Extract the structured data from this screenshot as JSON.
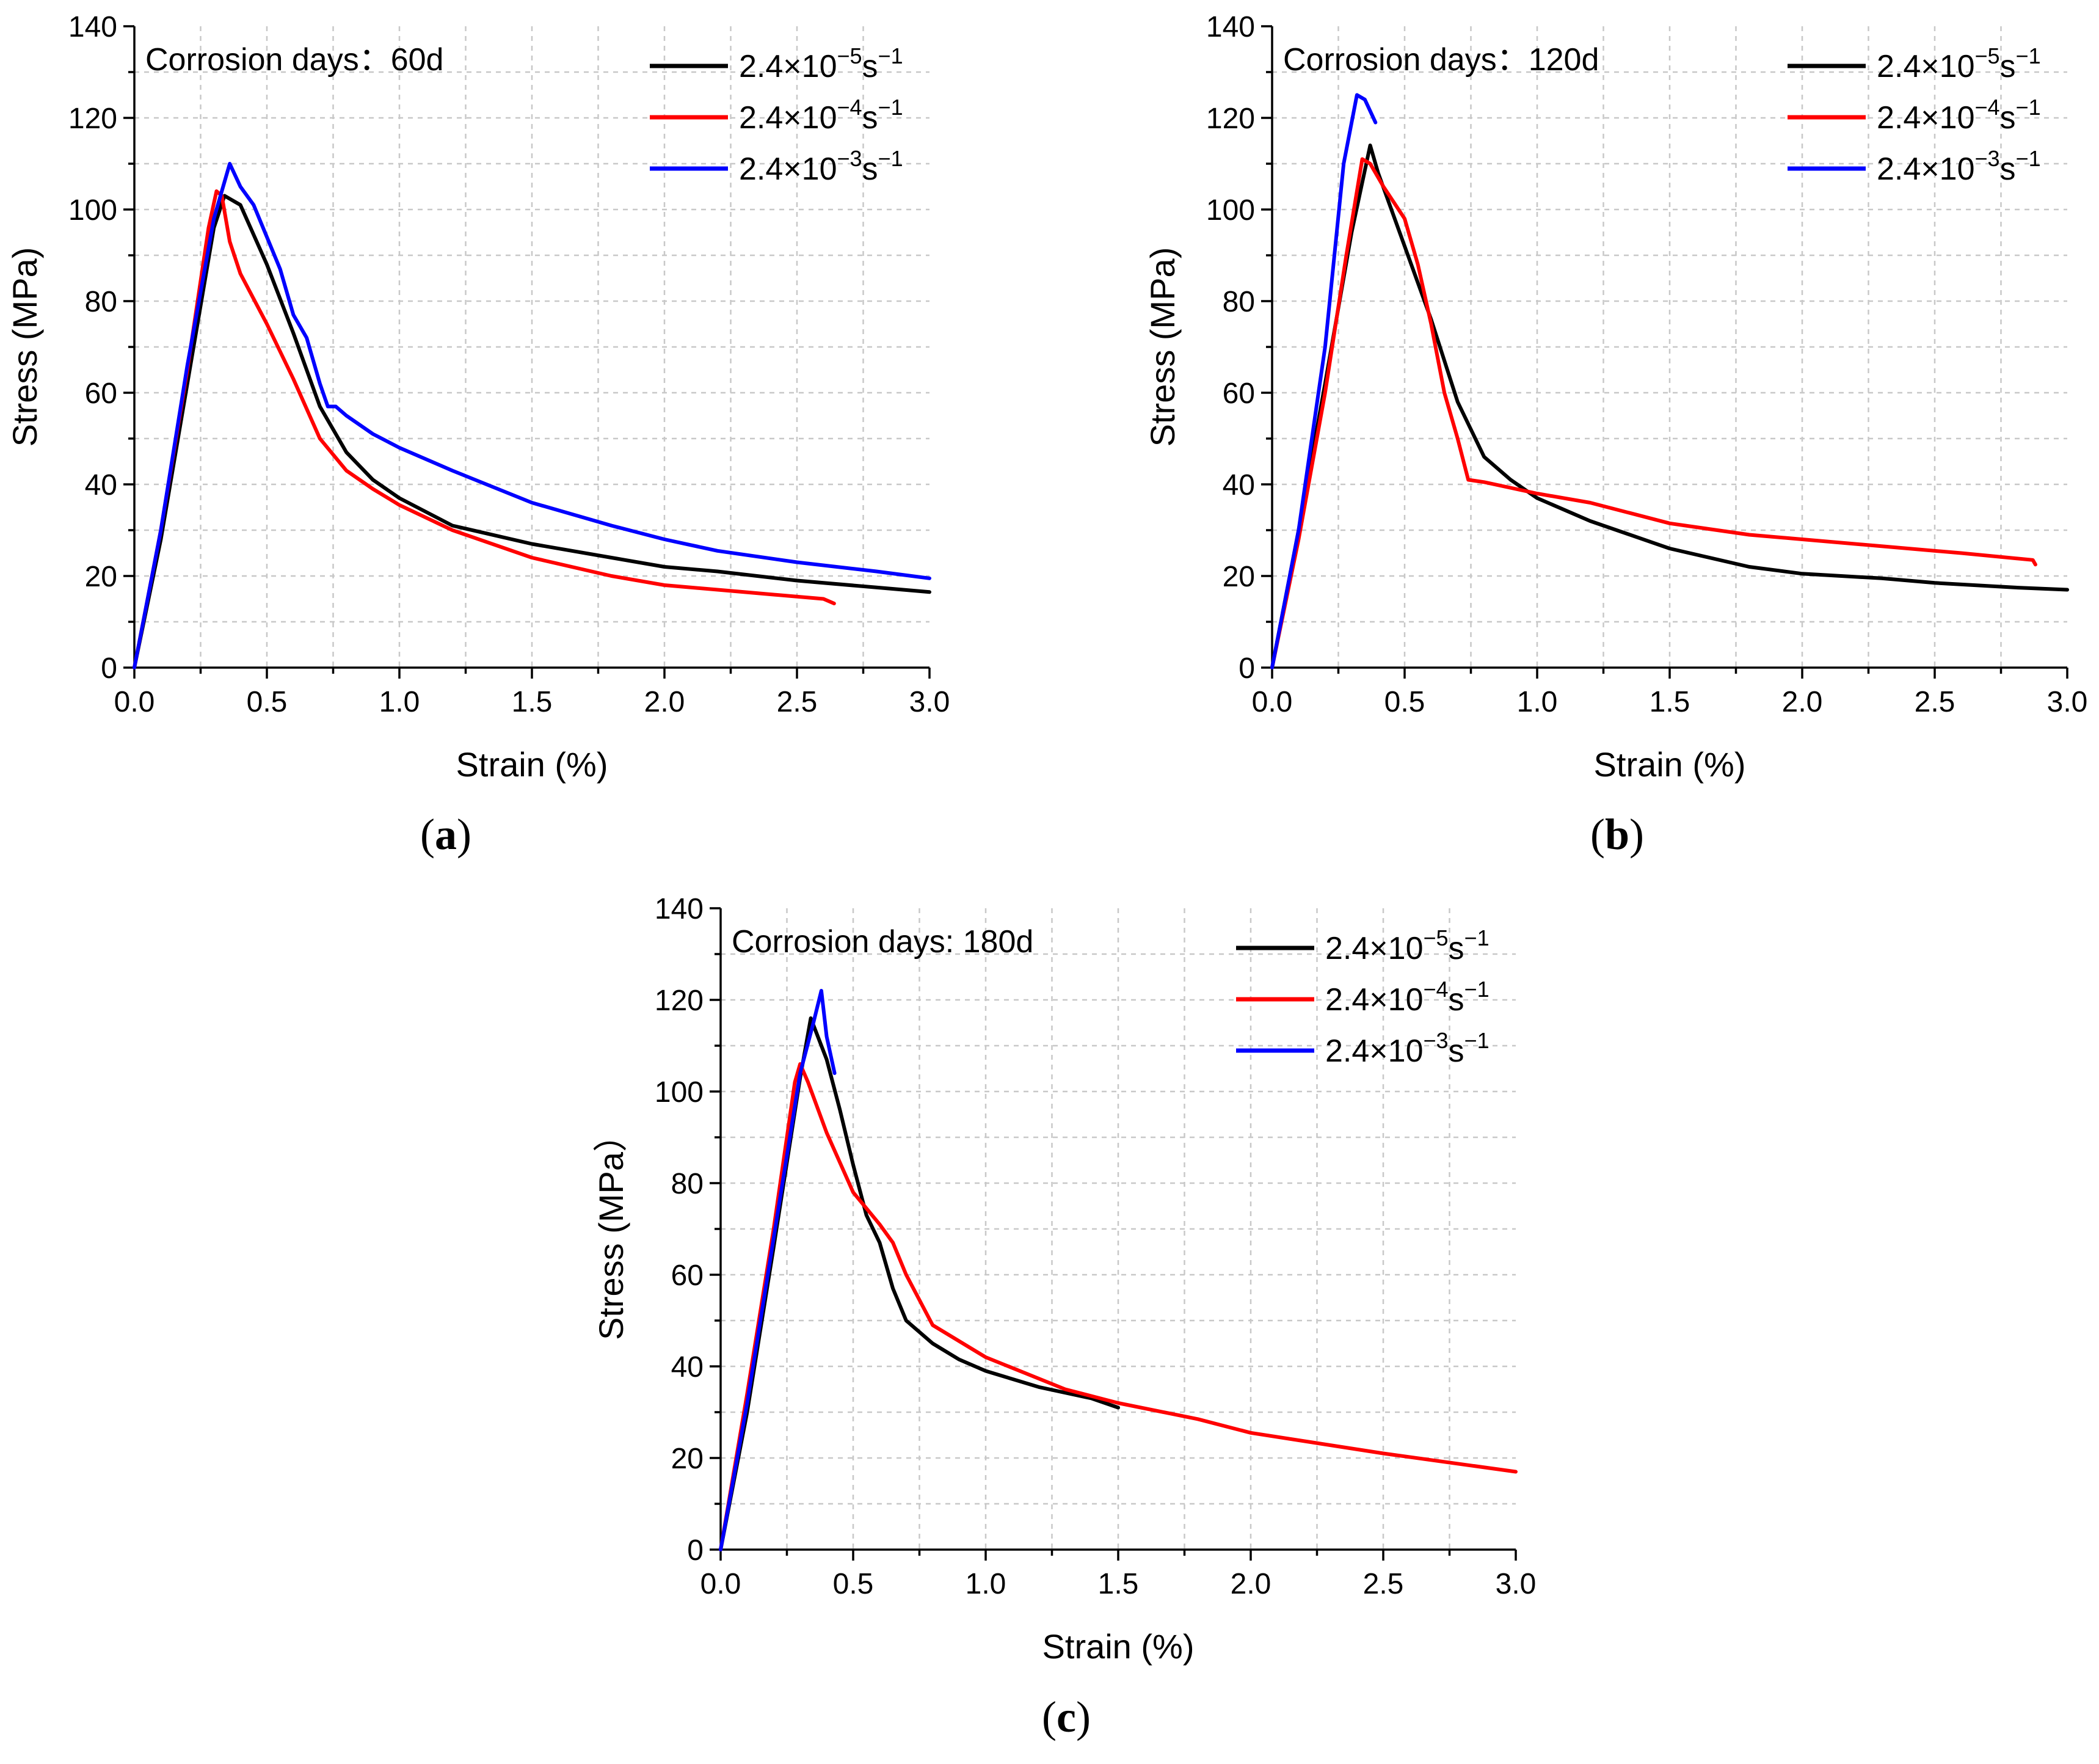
{
  "chart_data": [
    {
      "type": "line",
      "panel_label": "a",
      "annotation": "Corrosion days：60d",
      "xlabel": "Strain (%)",
      "ylabel": "Stress (MPa)",
      "xlim": [
        0,
        3.0
      ],
      "ylim": [
        0,
        140
      ],
      "xticks": [
        "0.0",
        "0.5",
        "1.0",
        "1.5",
        "2.0",
        "2.5",
        "3.0"
      ],
      "yticks": [
        "0",
        "20",
        "40",
        "60",
        "80",
        "100",
        "120",
        "140"
      ],
      "grid": true,
      "legend_position": "top-right",
      "series": [
        {
          "name": "2.4×10⁻⁵s⁻¹",
          "base": "2.4×10",
          "exp": "−5",
          "unit": "s",
          "unit_exp": "−1",
          "color": "#000000",
          "points": [
            [
              0,
              0
            ],
            [
              0.1,
              28
            ],
            [
              0.2,
              62
            ],
            [
              0.3,
              96
            ],
            [
              0.34,
              103
            ],
            [
              0.4,
              101
            ],
            [
              0.5,
              88
            ],
            [
              0.6,
              73
            ],
            [
              0.7,
              57
            ],
            [
              0.8,
              47
            ],
            [
              0.9,
              41
            ],
            [
              1.0,
              37
            ],
            [
              1.2,
              31
            ],
            [
              1.5,
              27
            ],
            [
              1.8,
              24
            ],
            [
              2.0,
              22
            ],
            [
              2.2,
              21
            ],
            [
              2.5,
              19
            ],
            [
              2.8,
              17.5
            ],
            [
              3.0,
              16.5
            ]
          ]
        },
        {
          "name": "2.4×10⁻⁴s⁻¹",
          "base": "2.4×10",
          "exp": "−4",
          "unit": "s",
          "unit_exp": "−1",
          "color": "#ff0000",
          "points": [
            [
              0,
              0
            ],
            [
              0.1,
              30
            ],
            [
              0.2,
              65
            ],
            [
              0.28,
              96
            ],
            [
              0.31,
              104
            ],
            [
              0.33,
              103
            ],
            [
              0.36,
              93
            ],
            [
              0.4,
              86
            ],
            [
              0.5,
              75
            ],
            [
              0.6,
              63
            ],
            [
              0.7,
              50
            ],
            [
              0.8,
              43
            ],
            [
              0.9,
              39
            ],
            [
              1.0,
              35.5
            ],
            [
              1.2,
              30
            ],
            [
              1.5,
              24
            ],
            [
              1.8,
              20
            ],
            [
              2.0,
              18
            ],
            [
              2.3,
              16.5
            ],
            [
              2.6,
              15
            ],
            [
              2.64,
              14
            ]
          ]
        },
        {
          "name": "2.4×10⁻³s⁻¹",
          "base": "2.4×10",
          "exp": "−3",
          "unit": "s",
          "unit_exp": "−1",
          "color": "#0000ff",
          "points": [
            [
              0,
              0
            ],
            [
              0.1,
              30
            ],
            [
              0.2,
              66
            ],
            [
              0.3,
              98
            ],
            [
              0.36,
              110
            ],
            [
              0.4,
              105
            ],
            [
              0.45,
              101
            ],
            [
              0.5,
              94
            ],
            [
              0.55,
              87
            ],
            [
              0.6,
              77
            ],
            [
              0.65,
              72
            ],
            [
              0.7,
              62
            ],
            [
              0.73,
              57
            ],
            [
              0.76,
              57
            ],
            [
              0.8,
              55
            ],
            [
              0.9,
              51
            ],
            [
              1.0,
              48
            ],
            [
              1.2,
              43
            ],
            [
              1.5,
              36
            ],
            [
              1.8,
              31
            ],
            [
              2.0,
              28
            ],
            [
              2.2,
              25.5
            ],
            [
              2.5,
              23
            ],
            [
              2.8,
              21
            ],
            [
              3.0,
              19.5
            ]
          ]
        }
      ]
    },
    {
      "type": "line",
      "panel_label": "b",
      "annotation": "Corrosion days：120d",
      "xlabel": "Strain (%)",
      "ylabel": "Stress (MPa)",
      "xlim": [
        0,
        3.0
      ],
      "ylim": [
        0,
        140
      ],
      "xticks": [
        "0.0",
        "0.5",
        "1.0",
        "1.5",
        "2.0",
        "2.5",
        "3.0"
      ],
      "yticks": [
        "0",
        "20",
        "40",
        "60",
        "80",
        "100",
        "120",
        "140"
      ],
      "grid": true,
      "legend_position": "top-right",
      "series": [
        {
          "name": "2.4×10⁻⁵s⁻¹",
          "base": "2.4×10",
          "exp": "−5",
          "unit": "s",
          "unit_exp": "−1",
          "color": "#000000",
          "points": [
            [
              0,
              0
            ],
            [
              0.1,
              30
            ],
            [
              0.2,
              62
            ],
            [
              0.3,
              95
            ],
            [
              0.37,
              114
            ],
            [
              0.4,
              108
            ],
            [
              0.5,
              92
            ],
            [
              0.6,
              76
            ],
            [
              0.7,
              58
            ],
            [
              0.8,
              46
            ],
            [
              0.9,
              41
            ],
            [
              1.0,
              37
            ],
            [
              1.2,
              32
            ],
            [
              1.5,
              26
            ],
            [
              1.8,
              22
            ],
            [
              2.0,
              20.5
            ],
            [
              2.3,
              19.5
            ],
            [
              2.5,
              18.5
            ],
            [
              2.8,
              17.5
            ],
            [
              3.0,
              17
            ]
          ]
        },
        {
          "name": "2.4×10⁻⁴s⁻¹",
          "base": "2.4×10",
          "exp": "−4",
          "unit": "s",
          "unit_exp": "−1",
          "color": "#ff0000",
          "points": [
            [
              0,
              0
            ],
            [
              0.1,
              28
            ],
            [
              0.2,
              60
            ],
            [
              0.28,
              90
            ],
            [
              0.34,
              111
            ],
            [
              0.37,
              110
            ],
            [
              0.42,
              105
            ],
            [
              0.5,
              98
            ],
            [
              0.55,
              88
            ],
            [
              0.6,
              75
            ],
            [
              0.65,
              60
            ],
            [
              0.7,
              50
            ],
            [
              0.74,
              41
            ],
            [
              0.8,
              40.5
            ],
            [
              1.0,
              38
            ],
            [
              1.2,
              36
            ],
            [
              1.5,
              31.5
            ],
            [
              1.8,
              29
            ],
            [
              2.0,
              28
            ],
            [
              2.3,
              26.5
            ],
            [
              2.6,
              25
            ],
            [
              2.87,
              23.5
            ],
            [
              2.88,
              22.5
            ]
          ]
        },
        {
          "name": "2.4×10⁻³s⁻¹",
          "base": "2.4×10",
          "exp": "−3",
          "unit": "s",
          "unit_exp": "−1",
          "color": "#0000ff",
          "points": [
            [
              0,
              0
            ],
            [
              0.1,
              30
            ],
            [
              0.2,
              70
            ],
            [
              0.27,
              110
            ],
            [
              0.32,
              125
            ],
            [
              0.35,
              124
            ],
            [
              0.39,
              119
            ]
          ]
        }
      ]
    },
    {
      "type": "line",
      "panel_label": "c",
      "annotation": "Corrosion days: 180d",
      "xlabel": "Strain (%)",
      "ylabel": "Stress (MPa）",
      "xlim": [
        0,
        3.0
      ],
      "ylim": [
        0,
        140
      ],
      "xticks": [
        "0.0",
        "0.5",
        "1.0",
        "1.5",
        "2.0",
        "2.5",
        "3.0"
      ],
      "yticks": [
        "0",
        "20",
        "40",
        "60",
        "80",
        "100",
        "120",
        "140"
      ],
      "grid": true,
      "legend_position": "top-right",
      "series": [
        {
          "name": "2.4×10⁻⁵s⁻¹",
          "base": "2.4×10",
          "exp": "−5",
          "unit": "s",
          "unit_exp": "−1",
          "color": "#000000",
          "points": [
            [
              0,
              0
            ],
            [
              0.1,
              30
            ],
            [
              0.2,
              66
            ],
            [
              0.3,
              103
            ],
            [
              0.34,
              116
            ],
            [
              0.4,
              107
            ],
            [
              0.45,
              96
            ],
            [
              0.5,
              84
            ],
            [
              0.55,
              73
            ],
            [
              0.6,
              67
            ],
            [
              0.65,
              57
            ],
            [
              0.7,
              50
            ],
            [
              0.8,
              45
            ],
            [
              0.9,
              41.5
            ],
            [
              1.0,
              39
            ],
            [
              1.2,
              35.5
            ],
            [
              1.4,
              33
            ],
            [
              1.5,
              31
            ]
          ]
        },
        {
          "name": "2.4×10⁻⁴s⁻¹",
          "base": "2.4×10",
          "exp": "−4",
          "unit": "s",
          "unit_exp": "−1",
          "color": "#ff0000",
          "points": [
            [
              0,
              0
            ],
            [
              0.1,
              34
            ],
            [
              0.2,
              70
            ],
            [
              0.28,
              102
            ],
            [
              0.3,
              106
            ],
            [
              0.33,
              102
            ],
            [
              0.4,
              91
            ],
            [
              0.5,
              78
            ],
            [
              0.6,
              71
            ],
            [
              0.65,
              67
            ],
            [
              0.7,
              60
            ],
            [
              0.8,
              49
            ],
            [
              1.0,
              42
            ],
            [
              1.3,
              35
            ],
            [
              1.5,
              32
            ],
            [
              1.8,
              28.5
            ],
            [
              2.0,
              25.5
            ],
            [
              2.5,
              21
            ],
            [
              3.0,
              17
            ]
          ]
        },
        {
          "name": "2.4×10⁻³s⁻¹",
          "base": "2.4×10",
          "exp": "−3",
          "unit": "s",
          "unit_exp": "−1",
          "color": "#0000ff",
          "points": [
            [
              0,
              0
            ],
            [
              0.1,
              32
            ],
            [
              0.2,
              68
            ],
            [
              0.3,
              104
            ],
            [
              0.35,
              115
            ],
            [
              0.38,
              122
            ],
            [
              0.4,
              112
            ],
            [
              0.43,
              104
            ]
          ]
        }
      ]
    }
  ]
}
